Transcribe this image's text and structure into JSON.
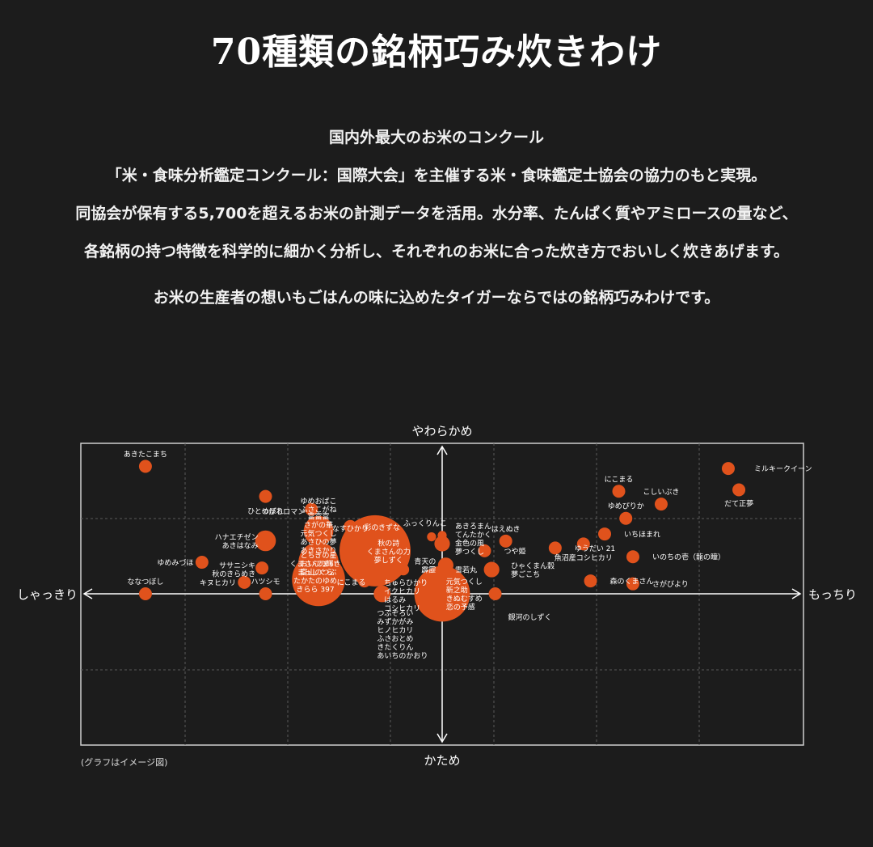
{
  "header": {
    "title": "70種類の銘柄巧み炊きわけ",
    "lines": [
      "国内外最大のお米のコンクール",
      "「米・食味分析鑑定コンクール：国際大会」を主催する米・食味鑑定士協会の協力のもと実現。",
      "同協会が保有する5,700を超えるお米の計測データを活用。水分率、たんぱく質やアミロースの量など、",
      "各銘柄の持つ特徴を科学的に細かく分析し、それぞれのお米に合った炊き方でおいしく炊きあげます。",
      "お米の生産者の想いもごはんの味に込めたタイガーならではの銘柄巧みわけです。"
    ]
  },
  "chart_data": {
    "type": "scatter",
    "note": "(グラフはイメージ図)",
    "axes": {
      "top": "やわらかめ",
      "bottom": "かため",
      "left": "しゃっきり",
      "right": "もっちり",
      "xlim": [
        -100,
        100
      ],
      "ylim": [
        -100,
        100
      ]
    },
    "grid": true,
    "color": "#e0521c",
    "points": [
      {
        "x": 81,
        "y": 88,
        "r": 1,
        "label": [
          "ミルキークイーン"
        ],
        "lx": 4,
        "ly": 0,
        "anchor": "start"
      },
      {
        "x": 84,
        "y": 73,
        "r": 1,
        "label": [
          "だて正夢"
        ],
        "lx": 0,
        "ly": -1,
        "anchor": "middle"
      },
      {
        "x": 50,
        "y": 72,
        "r": 1,
        "label": [
          "にこまる"
        ],
        "lx": 0,
        "ly": 1,
        "anchor": "middle"
      },
      {
        "x": 62,
        "y": 63,
        "r": 1,
        "label": [
          "こしいぶき"
        ],
        "lx": 0,
        "ly": 1,
        "anchor": "middle"
      },
      {
        "x": 52,
        "y": 53,
        "r": 1,
        "label": [
          "ゆめぴりか"
        ],
        "lx": 0,
        "ly": 1,
        "anchor": "middle"
      },
      {
        "x": 46,
        "y": 42,
        "r": 1,
        "label": [
          "いちほまれ"
        ],
        "lx": 3,
        "ly": 0,
        "anchor": "start"
      },
      {
        "x": 40,
        "y": 35,
        "r": 1,
        "label": [
          "魚沼産コシヒカリ"
        ],
        "lx": 0,
        "ly": -1,
        "anchor": "middle"
      },
      {
        "x": 54,
        "y": 26,
        "r": 1,
        "label": [
          "いのちの壱（龍の瞳）"
        ],
        "lx": 3,
        "ly": 0,
        "anchor": "start"
      },
      {
        "x": 54,
        "y": 7,
        "r": 1,
        "label": [
          "さがびより"
        ],
        "lx": 3,
        "ly": 0,
        "anchor": "start"
      },
      {
        "x": 42,
        "y": -9,
        "r": 1,
        "label": [
          "森のくまさん"
        ],
        "lx": 3,
        "ly": 0,
        "anchor": "start"
      },
      {
        "x": 32,
        "y": -32,
        "r": 1,
        "label": [
          "ゆうだい 21"
        ],
        "lx": 3,
        "ly": 0,
        "anchor": "start"
      },
      {
        "x": 18,
        "y": 37,
        "r": 1,
        "label": [
          "はえぬき"
        ],
        "lx": 0,
        "ly": 1,
        "anchor": "middle"
      },
      {
        "x": 14,
        "y": 17,
        "r": 1.2,
        "label": [
          "ひゃくまん穀",
          "夢ごこち"
        ],
        "lx": 3,
        "ly": 0,
        "anchor": "start"
      },
      {
        "x": 15,
        "y": 0,
        "r": 1,
        "label": [
          "銀河のしずく"
        ],
        "lx": 2,
        "ly": -2,
        "anchor": "start"
      },
      {
        "x": 12,
        "y": -30,
        "r": 1,
        "label": [
          "つや姫"
        ],
        "lx": 3,
        "ly": 0,
        "anchor": "start"
      },
      {
        "x": 0,
        "y": -35,
        "r": 1.2,
        "label": [
          "雪若丸"
        ],
        "lx": 2,
        "ly": -2,
        "anchor": "start"
      },
      {
        "x": 0,
        "y": 41,
        "r": 0.7,
        "label": [
          "あきろまん",
          "てんたかく",
          "金色の風",
          "夢つくし"
        ],
        "lx": 2,
        "ly": 0.5,
        "anchor": "start"
      },
      {
        "x": 0,
        "y": 0,
        "r": 4.3,
        "label": [
          "元気つくし",
          "新之助",
          "きぬむすめ",
          "恋の予感"
        ],
        "lx": 0.6,
        "ly": 0,
        "anchor": "start"
      },
      {
        "x": 1,
        "y": 20,
        "r": 1.2,
        "label": [
          "青天の",
          "霹靂"
        ],
        "lx": -1.5,
        "ly": 0,
        "anchor": "end"
      },
      {
        "x": -11,
        "y": 17,
        "r": 0.9,
        "label": [],
        "lx": 0,
        "ly": 0,
        "anchor": "start"
      },
      {
        "x": -17,
        "y": 12,
        "r": 1.3,
        "label": [
          "秋の詩",
          "くまさんの力",
          "夢しずく"
        ],
        "lx": 1,
        "ly": 1.2,
        "anchor": "middle"
      },
      {
        "x": -17,
        "y": 0,
        "r": 1.3,
        "label": [
          "ちゅらひかり",
          "イクヒカリ",
          "はるみ",
          "コシヒカリ"
        ],
        "lx": 0.3,
        "ly": 0.2,
        "anchor": "start"
      },
      {
        "x": -17,
        "y": 38,
        "r": 1,
        "label": [
          "彩のきずな"
        ],
        "lx": 0,
        "ly": 1,
        "anchor": "middle"
      },
      {
        "x": -3,
        "y": 40,
        "r": 0.7,
        "label": [
          "ふっくりんこ"
        ],
        "lx": -1,
        "ly": 1.4,
        "anchor": "middle"
      },
      {
        "x": -22,
        "y": -9,
        "r": 1,
        "label": [
          "にこまる"
        ],
        "lx": 0.2,
        "ly": 0.2,
        "anchor": "end"
      },
      {
        "x": -35,
        "y": 48,
        "r": 1.2,
        "label": [
          "ゆめおばこ",
          "ふさこがね"
        ],
        "lx": 0,
        "ly": 1.2,
        "anchor": "middle"
      },
      {
        "x": -35,
        "y": 10,
        "r": 4.1,
        "label": [
          "富富富",
          "さがの華",
          "元気つくし",
          "あさひの夢",
          "あきさかり"
        ],
        "lx": 0,
        "ly": 0.9,
        "anchor": "middle"
      },
      {
        "x": -35,
        "y": -22,
        "r": 3.1,
        "label": [
          "とちぎの星",
          "おいでまい",
          "富山のつぶ"
        ],
        "lx": 0,
        "ly": 0.2,
        "anchor": "middle"
      },
      {
        "x": -19,
        "y": -30,
        "r": 5.5,
        "label": [
          "つぶぞろい",
          "みずかがみ",
          "ヒノヒカリ",
          "ふさおとめ",
          "きたくりん",
          "あいちのかおり"
        ],
        "lx": 0.3,
        "ly": -1.5,
        "anchor": "start"
      },
      {
        "x": -35,
        "y": -44,
        "r": 2.3,
        "label": [
          "くまさんの輝き",
          "まっしぐら",
          "たかたのゆめ",
          "きらら 397"
        ],
        "lx": -0.5,
        "ly": -1.6,
        "anchor": "middle"
      },
      {
        "x": -26,
        "y": -47,
        "r": 1,
        "label": [
          "なすひかり"
        ],
        "lx": 0,
        "ly": 0.3,
        "anchor": "middle"
      },
      {
        "x": -37,
        "y": -59,
        "r": 1,
        "label": [
          "つがるロマン"
        ],
        "lx": -1,
        "ly": 0.3,
        "anchor": "end"
      },
      {
        "x": -51,
        "y": -18,
        "r": 1,
        "label": [
          "ササニシキ",
          "秋のきらめき"
        ],
        "lx": -1,
        "ly": 0.2,
        "anchor": "end"
      },
      {
        "x": -50,
        "y": 0,
        "r": 1,
        "label": [
          "ハツシモ"
        ],
        "lx": 0,
        "ly": 1,
        "anchor": "middle"
      },
      {
        "x": -56,
        "y": -8,
        "r": 1,
        "label": [
          "キヌヒカリ"
        ],
        "lx": -1.3,
        "ly": 0,
        "anchor": "end"
      },
      {
        "x": -50,
        "y": -37,
        "r": 1.6,
        "label": [
          "ハナエチゼン",
          "あきはなみ"
        ],
        "lx": -1.1,
        "ly": 0,
        "anchor": "end"
      },
      {
        "x": -50,
        "y": -68,
        "r": 1,
        "label": [
          "ひとめぼれ"
        ],
        "lx": 0,
        "ly": -1.1,
        "anchor": "middle"
      },
      {
        "x": -84,
        "y": 0,
        "r": 1,
        "label": [
          "ななつぼし"
        ],
        "lx": 0,
        "ly": 1,
        "anchor": "middle"
      },
      {
        "x": -68,
        "y": -22,
        "r": 1,
        "label": [
          "ゆめみづほ"
        ],
        "lx": -1.3,
        "ly": 0,
        "anchor": "end"
      },
      {
        "x": -84,
        "y": -89,
        "r": 1,
        "label": [
          "あきたこまち"
        ],
        "lx": 0,
        "ly": 1,
        "anchor": "middle"
      }
    ]
  }
}
